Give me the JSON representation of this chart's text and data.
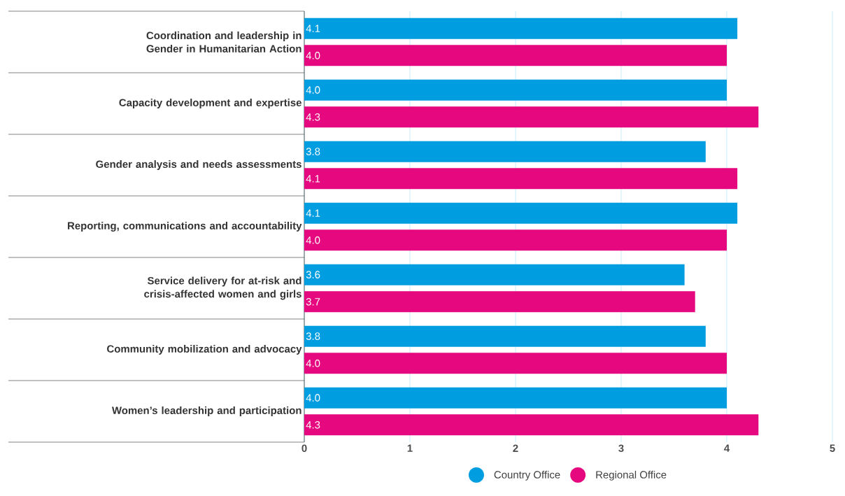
{
  "chart_data": {
    "type": "bar",
    "orientation": "horizontal",
    "categories": [
      "Coordination and leadership in Gender in Humanitarian Action",
      "Capacity development and expertise",
      "Gender analysis and needs assessments",
      "Reporting, communications and accountability",
      "Service delivery for at-risk and crisis-affected women and girls",
      "Community mobilization and advocacy",
      "Women’s leadership and participation"
    ],
    "series": [
      {
        "name": "Country Office",
        "color": "#009de0",
        "values": [
          4.1,
          4.0,
          3.8,
          4.1,
          3.6,
          3.8,
          4.0
        ],
        "value_labels": [
          "4.1",
          "4.0",
          "3.8",
          "4.1",
          "3.6",
          "3.8",
          "4.0"
        ]
      },
      {
        "name": "Regional Office",
        "color": "#e6087e",
        "values": [
          4.0,
          4.3,
          4.1,
          4.0,
          3.7,
          4.0,
          4.3
        ],
        "value_labels": [
          "4.0",
          "4.3",
          "4.1",
          "4.0",
          "3.7",
          "4.0",
          "4.3"
        ]
      }
    ],
    "xlim": [
      0,
      5
    ],
    "xticks": [
      0,
      1,
      2,
      3,
      4,
      5
    ],
    "grid": "x",
    "legend": "bottom"
  }
}
